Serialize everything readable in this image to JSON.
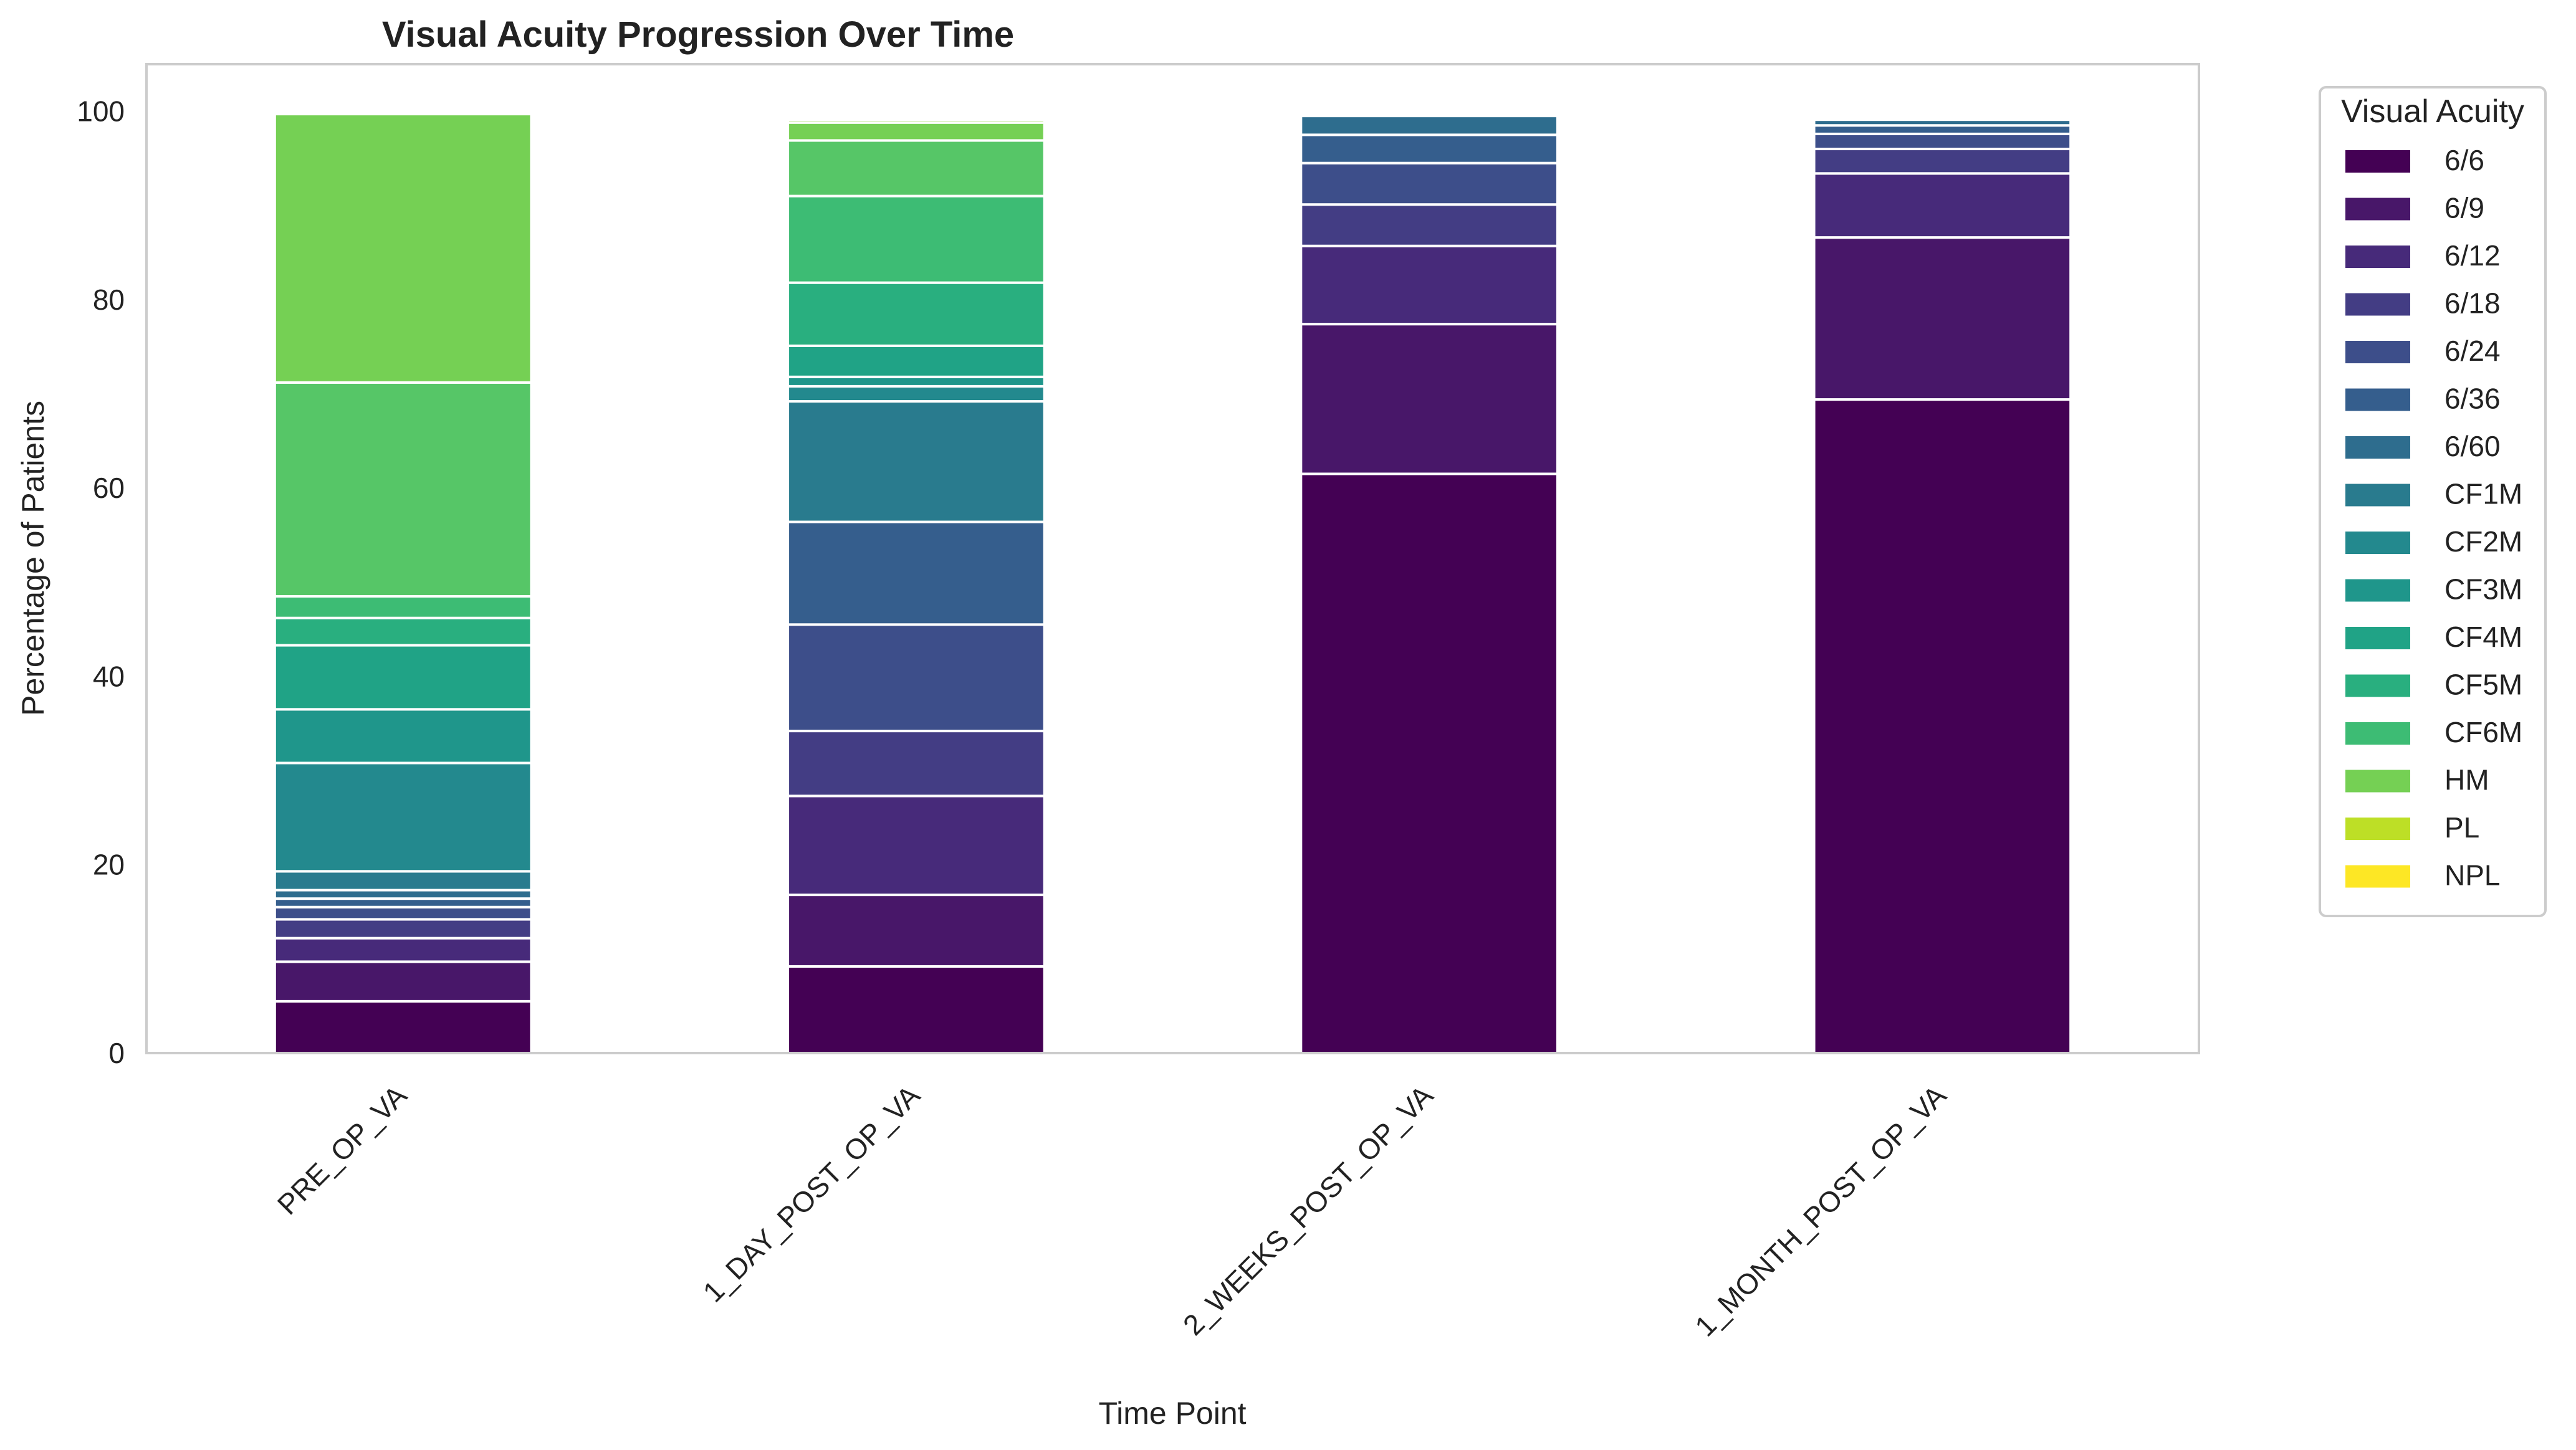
{
  "chart_data": {
    "type": "bar",
    "stacked": true,
    "title": "Visual Acuity Progression Over Time",
    "xlabel": "Time Point",
    "ylabel": "Percentage of Patients",
    "ylim": [
      0,
      105
    ],
    "yticks": [
      0,
      20,
      40,
      60,
      80,
      100
    ],
    "grid": false,
    "legend": {
      "title": "Visual Acuity",
      "placement": "outside-right"
    },
    "categories": [
      "PRE_OP_VA",
      "1_DAY_POST_OP_VA",
      "2_WEEKS_POST_OP_VA",
      "1_MONTH_POST_OP_VA"
    ],
    "series": [
      {
        "name": "6/6",
        "color": "#440154",
        "values": [
          5.5,
          9.2,
          61.5,
          69.4
        ]
      },
      {
        "name": "6/9",
        "color": "#481769",
        "values": [
          4.2,
          7.6,
          15.9,
          17.2
        ]
      },
      {
        "name": "6/12",
        "color": "#472a7a",
        "values": [
          2.5,
          10.5,
          8.3,
          6.8
        ]
      },
      {
        "name": "6/18",
        "color": "#433d84",
        "values": [
          2.0,
          6.9,
          4.4,
          2.6
        ]
      },
      {
        "name": "6/24",
        "color": "#3d4e8a",
        "values": [
          1.3,
          11.3,
          4.4,
          1.6
        ]
      },
      {
        "name": "6/36",
        "color": "#355e8d",
        "values": [
          0.9,
          10.9,
          3.0,
          0.9
        ]
      },
      {
        "name": "6/60",
        "color": "#2e6d8e",
        "values": [
          0.9,
          0.0,
          2.0,
          0.6
        ]
      },
      {
        "name": "CF1M",
        "color": "#297b8e",
        "values": [
          2.0,
          12.8,
          0.0,
          0.0
        ]
      },
      {
        "name": "CF2M",
        "color": "#23898e",
        "values": [
          11.5,
          1.6,
          0.0,
          0.0
        ]
      },
      {
        "name": "CF3M",
        "color": "#1f968b",
        "values": [
          5.7,
          1.0,
          0.0,
          0.0
        ]
      },
      {
        "name": "CF4M",
        "color": "#20a386",
        "values": [
          6.8,
          3.3,
          0.0,
          0.0
        ]
      },
      {
        "name": "CF5M",
        "color": "#29af7f",
        "values": [
          2.9,
          6.7,
          0.0,
          0.0
        ]
      },
      {
        "name": "CF6M",
        "color": "#3dbc74",
        "values": [
          2.3,
          9.2,
          0.0,
          0.0
        ]
      },
      {
        "name": "HM",
        "color": "#56c667",
        "values": [
          22.7,
          5.9,
          0.0,
          0.0
        ]
      },
      {
        "name": "PL",
        "color": "#75d054",
        "values": [
          28.5,
          1.9,
          0.0,
          0.0
        ]
      },
      {
        "name": "NPL",
        "color": "#95d840",
        "values": [
          0.0,
          0.3,
          0.0,
          0.0
        ]
      }
    ],
    "legend_swatches": [
      "#440154",
      "#481769",
      "#472a7a",
      "#433d84",
      "#3d4e8a",
      "#355e8d",
      "#2e6d8e",
      "#297b8e",
      "#23898e",
      "#1f968b",
      "#20a386",
      "#29af7f",
      "#3dbc74",
      "#75d054",
      "#bddf26",
      "#fde725"
    ]
  }
}
